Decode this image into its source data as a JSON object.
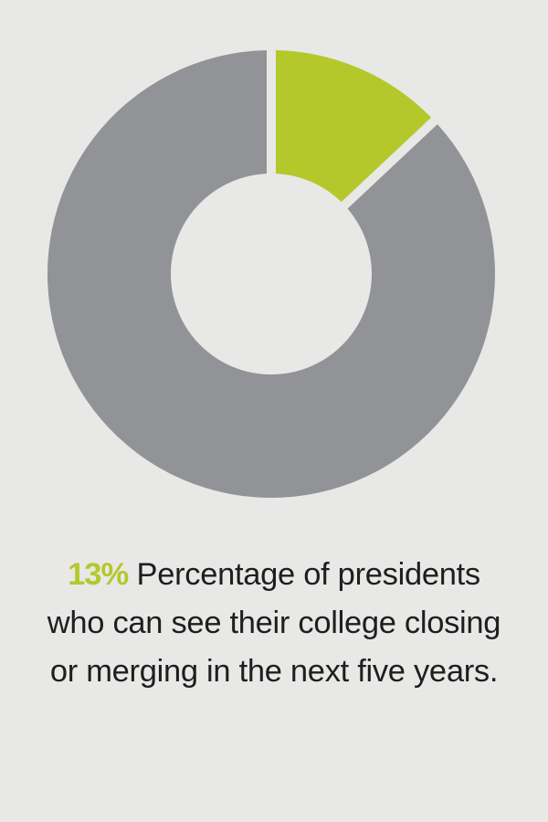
{
  "chart_data": {
    "type": "pie",
    "style": "donut",
    "slices": [
      {
        "value": 13,
        "color": "#b4c82b"
      },
      {
        "value": 87,
        "color": "#929396"
      }
    ],
    "highlight": "13%",
    "description": "Percentage of presidents who can see their college closing or merging in the next five years."
  }
}
